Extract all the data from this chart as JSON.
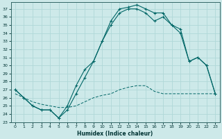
{
  "xlabel": "Humidex (Indice chaleur)",
  "bg_color": "#cde9e9",
  "grid_color": "#b0d8d8",
  "line_color": "#006666",
  "xlim": [
    -0.5,
    23.5
  ],
  "ylim": [
    23,
    37.8
  ],
  "yticks": [
    23,
    24,
    25,
    26,
    27,
    28,
    29,
    30,
    31,
    32,
    33,
    34,
    35,
    36,
    37
  ],
  "xticks": [
    0,
    1,
    2,
    3,
    4,
    5,
    6,
    7,
    8,
    9,
    10,
    11,
    12,
    13,
    14,
    15,
    16,
    17,
    18,
    19,
    20,
    21,
    22,
    23
  ],
  "curve1_x": [
    0,
    1,
    2,
    3,
    4,
    5,
    6,
    7,
    8,
    9,
    10,
    11,
    12,
    13,
    14,
    15,
    16,
    17,
    18,
    19,
    20,
    21,
    22,
    23
  ],
  "curve1_y": [
    27.0,
    26.0,
    25.0,
    24.5,
    24.5,
    23.5,
    24.5,
    26.5,
    28.5,
    30.5,
    33.0,
    35.5,
    37.0,
    37.2,
    37.5,
    37.0,
    36.5,
    36.5,
    35.0,
    34.5,
    30.5,
    31.0,
    30.0,
    26.5
  ],
  "curve2_x": [
    0,
    1,
    2,
    3,
    4,
    5,
    6,
    7,
    8,
    9,
    10,
    11,
    12,
    13,
    14,
    15,
    16,
    17,
    18,
    19,
    20,
    21,
    22,
    23
  ],
  "curve2_y": [
    27.0,
    26.0,
    25.0,
    24.5,
    24.5,
    23.5,
    25.0,
    27.5,
    29.5,
    30.5,
    33.0,
    35.0,
    36.5,
    37.0,
    37.0,
    36.5,
    35.5,
    36.0,
    35.0,
    34.0,
    30.5,
    31.0,
    30.0,
    26.5
  ],
  "curve3_x": [
    0,
    1,
    2,
    3,
    4,
    5,
    6,
    7,
    8,
    9,
    10,
    11,
    12,
    13,
    14,
    15,
    16,
    17,
    18,
    19,
    20,
    21,
    22,
    23
  ],
  "curve3_y": [
    26.5,
    26.0,
    25.5,
    25.2,
    25.0,
    24.8,
    24.8,
    25.0,
    25.5,
    26.0,
    26.3,
    26.5,
    27.0,
    27.3,
    27.5,
    27.5,
    26.8,
    26.5,
    26.5,
    26.5,
    26.5,
    26.5,
    26.5,
    26.5
  ]
}
